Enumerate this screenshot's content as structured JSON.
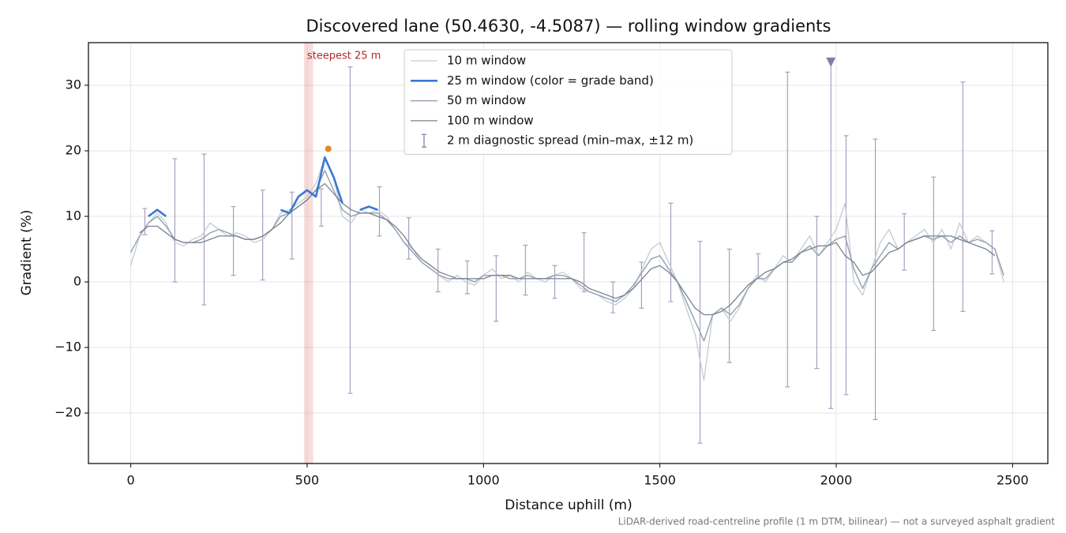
{
  "chart_data": {
    "type": "line",
    "title": "Discovered lane (50.4630, -4.5087) — rolling window gradients",
    "xlabel": "Distance uphill (m)",
    "ylabel": "Gradient (%)",
    "footnote": "LiDAR-derived road-centreline profile (1 m DTM, bilinear) — not a surveyed asphalt gradient",
    "xlim": [
      -120,
      2600
    ],
    "ylim": [
      -27.7,
      36.5
    ],
    "xticks": [
      0,
      500,
      1000,
      1500,
      2000,
      2500
    ],
    "yticks": [
      {
        "value": -20,
        "label": "−20"
      },
      {
        "value": -10,
        "label": "−10"
      },
      0,
      10,
      20,
      30
    ],
    "grid": true,
    "legend": "upper center",
    "x": [
      0,
      25,
      50,
      75,
      100,
      125,
      150,
      175,
      200,
      225,
      250,
      275,
      300,
      325,
      350,
      375,
      400,
      425,
      450,
      475,
      500,
      525,
      550,
      575,
      600,
      625,
      650,
      675,
      700,
      725,
      750,
      775,
      800,
      825,
      850,
      875,
      900,
      925,
      950,
      975,
      1000,
      1025,
      1050,
      1075,
      1100,
      1125,
      1150,
      1175,
      1200,
      1225,
      1250,
      1275,
      1300,
      1325,
      1350,
      1375,
      1400,
      1425,
      1450,
      1475,
      1500,
      1525,
      1550,
      1575,
      1600,
      1625,
      1650,
      1675,
      1700,
      1725,
      1750,
      1775,
      1800,
      1825,
      1850,
      1875,
      1900,
      1925,
      1950,
      1975,
      2000,
      2025,
      2050,
      2075,
      2100,
      2125,
      2150,
      2175,
      2200,
      2225,
      2250,
      2275,
      2300,
      2325,
      2350,
      2375,
      2400,
      2425,
      2450,
      2475
    ],
    "series": [
      {
        "name": "10 m window",
        "color": "#c3cbd5",
        "width": 1.3,
        "values": [
          2.5,
          7,
          9,
          10.5,
          9,
          6,
          5.5,
          6.5,
          7,
          9,
          8,
          7,
          7.5,
          7,
          6,
          6.5,
          8,
          10.5,
          11,
          12,
          13,
          15,
          19,
          16,
          10,
          9,
          11,
          10.5,
          11,
          10,
          8,
          6,
          5,
          3,
          2,
          1,
          0,
          1,
          0,
          -0.5,
          1,
          2,
          0.5,
          1,
          0,
          1.5,
          0.5,
          0,
          1,
          1.5,
          0.5,
          -1,
          -1.5,
          -2,
          -3,
          -3.5,
          -2.5,
          -1,
          2,
          5,
          6,
          3,
          0,
          -4,
          -8,
          -15,
          -5,
          -4,
          -6,
          -4,
          -1,
          1,
          0,
          2,
          4,
          3,
          5,
          7,
          4,
          6,
          8,
          12,
          0,
          -2,
          2,
          6,
          8,
          5,
          6,
          7,
          8,
          6,
          8,
          5,
          9,
          6,
          7,
          6,
          5,
          0
        ]
      },
      {
        "name": "25 m window (color = grade band)",
        "color": "#3a78d4",
        "width": 2.6,
        "values": [
          null,
          null,
          10,
          11,
          10,
          null,
          null,
          null,
          null,
          null,
          null,
          null,
          null,
          null,
          null,
          null,
          null,
          11,
          10.5,
          13,
          14,
          13,
          19,
          16,
          12,
          null,
          11,
          11.5,
          11,
          null,
          null,
          null,
          null,
          null,
          null,
          null,
          null,
          null,
          null,
          null,
          null,
          null,
          null,
          null,
          null,
          null,
          null,
          null,
          null,
          null,
          null,
          null,
          null,
          null,
          null,
          null,
          null,
          null,
          null,
          null,
          null,
          null,
          null,
          null,
          null,
          null,
          null,
          null,
          null,
          null,
          null,
          null,
          null,
          null,
          null,
          null,
          null,
          null,
          null,
          null,
          null,
          null,
          null,
          null,
          null,
          null,
          null,
          null,
          null,
          null,
          null,
          null,
          null,
          null,
          null,
          null,
          null,
          null,
          null,
          null
        ]
      },
      {
        "name": "50 m window",
        "color": "#98a5b5",
        "width": 1.5,
        "values": [
          4.5,
          7,
          9,
          10,
          8.5,
          6.5,
          6,
          6,
          6.5,
          7.5,
          8,
          7.5,
          7,
          6.5,
          6.5,
          7,
          8,
          10,
          10.5,
          11.5,
          12.5,
          14,
          17,
          14,
          11,
          10,
          10.5,
          10.5,
          10.5,
          9.5,
          8,
          6,
          4.5,
          3,
          2,
          1,
          0.5,
          0.5,
          0.5,
          0,
          1,
          1,
          1,
          0.5,
          0.5,
          1,
          0.5,
          0.5,
          1,
          1,
          0.5,
          -0.5,
          -1.5,
          -2,
          -2.5,
          -3,
          -2,
          -0.5,
          1.5,
          3.5,
          4,
          2,
          0,
          -3,
          -6,
          -9,
          -5,
          -4,
          -5,
          -3.5,
          -1,
          0.5,
          0.5,
          2,
          3,
          3,
          4.5,
          5.5,
          4,
          5.5,
          6.5,
          7,
          2,
          -1,
          2,
          4,
          6,
          5,
          6,
          6.5,
          7,
          6.5,
          7,
          6,
          7,
          6,
          6.5,
          6,
          5,
          1
        ]
      },
      {
        "name": "100 m window",
        "color": "#7a8090",
        "width": 1.3,
        "values": [
          null,
          7.5,
          8.5,
          8.5,
          7.5,
          6.5,
          6,
          6,
          6,
          6.5,
          7,
          7,
          7,
          6.5,
          6.5,
          7,
          8,
          9,
          10.5,
          11.5,
          12.5,
          14,
          15,
          13.5,
          12,
          11,
          10.5,
          10.5,
          10,
          9.5,
          8.5,
          7,
          5,
          3.5,
          2.5,
          1.5,
          1,
          0.5,
          0.5,
          0.5,
          0.5,
          1,
          1,
          1,
          0.5,
          0.5,
          0.5,
          0.5,
          0.5,
          0.5,
          0.5,
          0,
          -1,
          -1.5,
          -2,
          -2.5,
          -2,
          -1,
          0.5,
          2,
          2.5,
          1.5,
          0,
          -2,
          -4,
          -5,
          -5,
          -4.5,
          -3.5,
          -2,
          -0.5,
          0.5,
          1.5,
          2,
          3,
          3.5,
          4.5,
          5,
          5.5,
          5.5,
          6,
          4,
          3,
          1,
          1.5,
          3,
          4.5,
          5,
          6,
          6.5,
          7,
          7,
          7,
          7,
          6.5,
          6,
          5.5,
          5,
          4,
          null
        ]
      }
    ],
    "errorbars": {
      "name": "2 m diagnostic spread (min–max, ±12 m)",
      "color": "#9a8fb5",
      "x": [
        40,
        125,
        208,
        291,
        374,
        457,
        540,
        622,
        705,
        788,
        871,
        954,
        1036,
        1119,
        1202,
        1285,
        1367,
        1448,
        1531,
        1614,
        1697,
        1779,
        1862,
        1945,
        1985,
        2028,
        2111,
        2193,
        2276,
        2359,
        2442
      ],
      "high": [
        11.2,
        18.8,
        19.5,
        11.5,
        14,
        13.7,
        14.2,
        32.8,
        14.5,
        9.8,
        5,
        3.2,
        4,
        5.6,
        2.5,
        7.5,
        0,
        3,
        12,
        6.2,
        5,
        4.3,
        32,
        10,
        33.5,
        22.3,
        21.8,
        10.4,
        16,
        30.5,
        7.8
      ],
      "low": [
        7.2,
        0,
        -3.5,
        1,
        0.3,
        3.5,
        8.5,
        -17,
        7,
        3.5,
        -1.5,
        -1.8,
        -6,
        -2,
        -2.5,
        -1.5,
        -4.7,
        -4,
        -3,
        -24.6,
        -12.3,
        0.5,
        -16,
        -13.2,
        -19.3,
        -17.2,
        -21,
        1.8,
        -7.4,
        -4.5,
        1.2
      ]
    },
    "highlight": {
      "x": [
        491,
        517
      ],
      "label": "steepest 25 m",
      "color": "#e88a8a"
    },
    "peak": {
      "x": 560,
      "y": 20.3,
      "color": "#e08a1e"
    },
    "marker": {
      "x": 1985,
      "y": 33.5,
      "color": "#8a78aa"
    }
  }
}
